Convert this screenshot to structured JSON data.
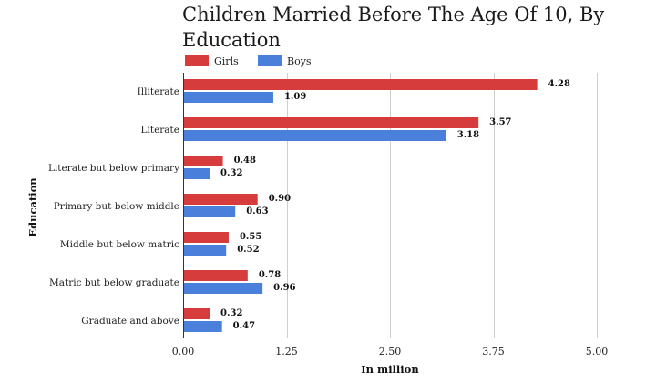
{
  "chart_data": {
    "type": "bar",
    "orientation": "horizontal",
    "title": "Children Married Before The Age Of 10, By Education",
    "xlabel": "In million",
    "ylabel": "Education",
    "xlim": [
      0,
      5
    ],
    "xticks": [
      "0.00",
      "1.25",
      "2.50",
      "3.75",
      "5.00"
    ],
    "xtick_values": [
      0,
      1.25,
      2.5,
      3.75,
      5
    ],
    "grid": "vertical",
    "legend_position": "top-left",
    "categories": [
      "Illiterate",
      "Literate",
      "Literate but below primary",
      "Primary but below middle",
      "Middle but below matric",
      "Matric but below graduate",
      "Graduate and above"
    ],
    "series": [
      {
        "name": "Girls",
        "color": "#d63c3c",
        "values": [
          4.28,
          3.57,
          0.48,
          0.9,
          0.55,
          0.78,
          0.32
        ],
        "labels": [
          "4.28",
          "3.57",
          "0.48",
          "0.90",
          "0.55",
          "0.78",
          "0.32"
        ]
      },
      {
        "name": "Boys",
        "color": "#4a80dc",
        "values": [
          1.09,
          3.18,
          0.32,
          0.63,
          0.52,
          0.96,
          0.47
        ],
        "labels": [
          "1.09",
          "3.18",
          "0.32",
          "0.63",
          "0.52",
          "0.96",
          "0.47"
        ]
      }
    ]
  }
}
